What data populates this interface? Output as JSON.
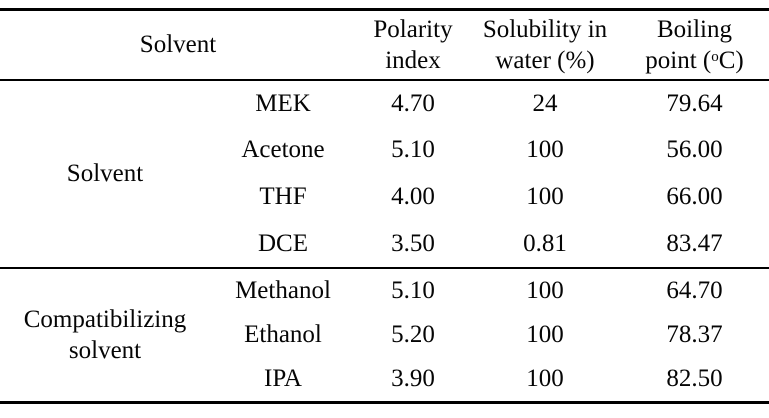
{
  "table": {
    "header": {
      "solvent_label": "Solvent",
      "polarity": {
        "line1": "Polarity",
        "line2": "index"
      },
      "solubility": {
        "line1": "Solubility in",
        "line2": "water (%)"
      },
      "boiling": {
        "line1": "Boiling",
        "line2_pre": "point (",
        "degree_sup": "o",
        "line2_post": "C)"
      }
    },
    "groups": [
      {
        "label": "Solvent",
        "rows": [
          {
            "name": "MEK",
            "polarity_index": "4.70",
            "solubility_water_pct": "24",
            "boiling_point_c": "79.64"
          },
          {
            "name": "Acetone",
            "polarity_index": "5.10",
            "solubility_water_pct": "100",
            "boiling_point_c": "56.00"
          },
          {
            "name": "THF",
            "polarity_index": "4.00",
            "solubility_water_pct": "100",
            "boiling_point_c": "66.00"
          },
          {
            "name": "DCE",
            "polarity_index": "3.50",
            "solubility_water_pct": "0.81",
            "boiling_point_c": "83.47"
          }
        ]
      },
      {
        "label": "Compatibilizing solvent",
        "rows": [
          {
            "name": "Methanol",
            "polarity_index": "5.10",
            "solubility_water_pct": "100",
            "boiling_point_c": "64.70"
          },
          {
            "name": "Ethanol",
            "polarity_index": "5.20",
            "solubility_water_pct": "100",
            "boiling_point_c": "78.37"
          },
          {
            "name": "IPA",
            "polarity_index": "3.90",
            "solubility_water_pct": "100",
            "boiling_point_c": "82.50"
          }
        ]
      }
    ]
  }
}
